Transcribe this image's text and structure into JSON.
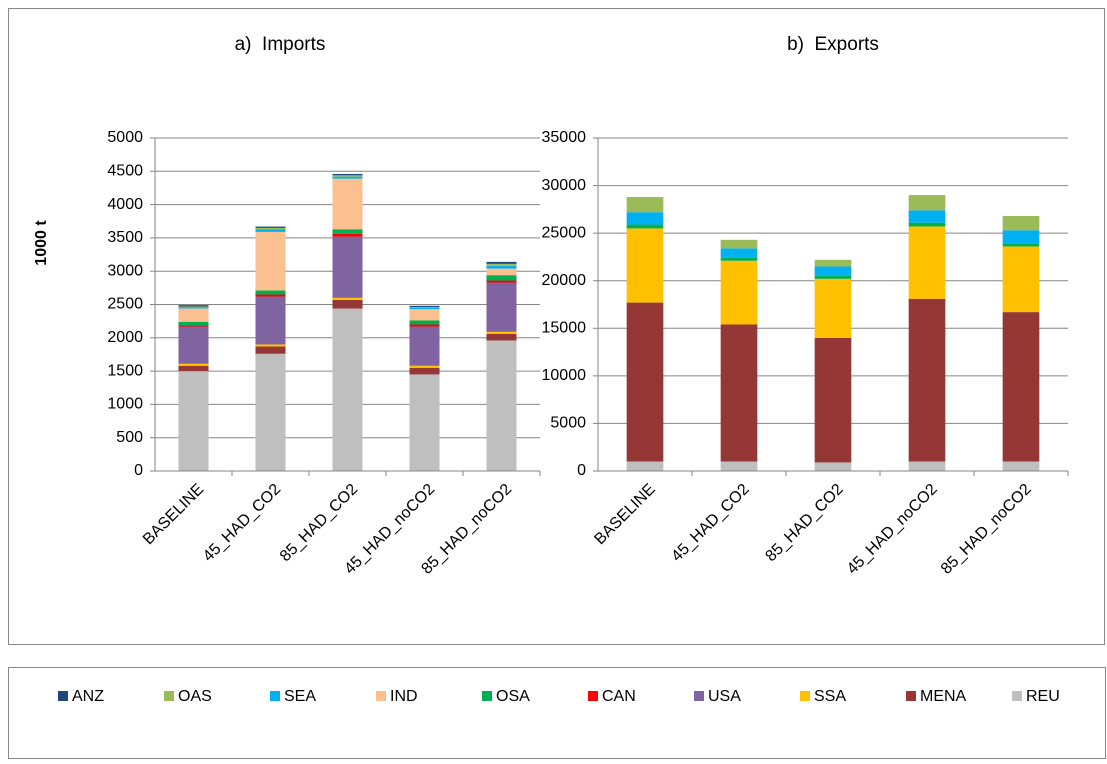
{
  "chart_data": [
    {
      "type": "bar",
      "stacked": true,
      "title": "a)  Imports",
      "ylabel": "1000 t",
      "categories": [
        "BASELINE",
        "45_HAD_CO2",
        "85_HAD_CO2",
        "45_HAD_noCO2",
        "85_HAD_noCO2"
      ],
      "ylim": [
        0,
        5000
      ],
      "yticks": [
        0,
        500,
        1000,
        1500,
        2000,
        2500,
        3000,
        3500,
        4000,
        4500,
        5000
      ],
      "grid": true,
      "series": [
        {
          "name": "REU",
          "color": "#bfbfbf",
          "values": [
            1500,
            1760,
            2440,
            1450,
            1960
          ]
        },
        {
          "name": "MENA",
          "color": "#953735",
          "values": [
            80,
            110,
            130,
            100,
            100
          ]
        },
        {
          "name": "SSA",
          "color": "#ffc000",
          "values": [
            30,
            30,
            30,
            30,
            30
          ]
        },
        {
          "name": "USA",
          "color": "#8064a2",
          "values": [
            560,
            720,
            920,
            590,
            740
          ]
        },
        {
          "name": "CAN",
          "color": "#ff0000",
          "values": [
            20,
            30,
            40,
            30,
            30
          ]
        },
        {
          "name": "OSA",
          "color": "#00b050",
          "values": [
            50,
            60,
            70,
            60,
            80
          ]
        },
        {
          "name": "IND",
          "color": "#fac090",
          "values": [
            200,
            880,
            760,
            170,
            100
          ]
        },
        {
          "name": "SEA",
          "color": "#00b0f0",
          "values": [
            20,
            40,
            30,
            20,
            40
          ]
        },
        {
          "name": "OAS",
          "color": "#9bbb59",
          "values": [
            10,
            20,
            20,
            10,
            30
          ]
        },
        {
          "name": "ANZ",
          "color": "#1f497d",
          "values": [
            20,
            20,
            20,
            20,
            30
          ]
        }
      ]
    },
    {
      "type": "bar",
      "stacked": true,
      "title": "b)  Exports",
      "categories": [
        "BASELINE",
        "45_HAD_CO2",
        "85_HAD_CO2",
        "45_HAD_noCO2",
        "85_HAD_noCO2"
      ],
      "ylim": [
        0,
        35000
      ],
      "yticks": [
        0,
        5000,
        10000,
        15000,
        20000,
        25000,
        30000,
        35000
      ],
      "grid": true,
      "series": [
        {
          "name": "REU",
          "color": "#bfbfbf",
          "values": [
            1000,
            1000,
            900,
            1000,
            1000
          ]
        },
        {
          "name": "MENA",
          "color": "#953735",
          "values": [
            16700,
            14400,
            13100,
            17100,
            15700
          ]
        },
        {
          "name": "SSA",
          "color": "#ffc000",
          "values": [
            7800,
            6700,
            6200,
            7600,
            6900
          ]
        },
        {
          "name": "USA",
          "color": "#8064a2",
          "values": [
            0,
            0,
            0,
            0,
            0
          ]
        },
        {
          "name": "CAN",
          "color": "#ff0000",
          "values": [
            0,
            0,
            0,
            0,
            0
          ]
        },
        {
          "name": "OSA",
          "color": "#00b050",
          "values": [
            400,
            300,
            300,
            400,
            300
          ]
        },
        {
          "name": "IND",
          "color": "#fac090",
          "values": [
            0,
            0,
            0,
            0,
            0
          ]
        },
        {
          "name": "SEA",
          "color": "#00b0f0",
          "values": [
            1300,
            1000,
            1000,
            1300,
            1400
          ]
        },
        {
          "name": "OAS",
          "color": "#9bbb59",
          "values": [
            1600,
            900,
            700,
            1600,
            1500
          ]
        },
        {
          "name": "ANZ",
          "color": "#1f497d",
          "values": [
            0,
            0,
            0,
            0,
            0
          ]
        }
      ]
    }
  ]
}
